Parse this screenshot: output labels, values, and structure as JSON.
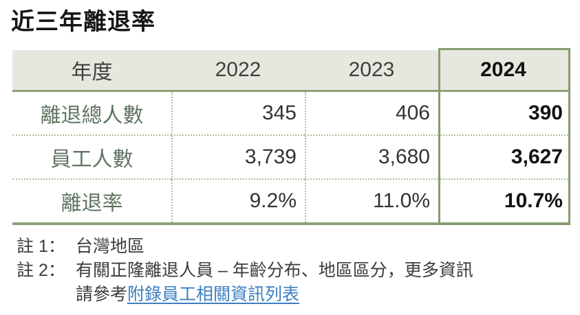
{
  "title": "近三年離退率",
  "table": {
    "header": {
      "label": "年度",
      "years": [
        "2022",
        "2023",
        "2024"
      ]
    },
    "rows": [
      {
        "label": "離退總人數",
        "values": [
          "345",
          "406",
          "390"
        ]
      },
      {
        "label": "員工人數",
        "values": [
          "3,739",
          "3,680",
          "3,627"
        ]
      },
      {
        "label": "離退率",
        "values": [
          "9.2%",
          "11.0%",
          "10.7%"
        ]
      }
    ],
    "highlighted_year": "2024"
  },
  "notes": {
    "note1": {
      "label": "註 1：",
      "text": "台灣地區"
    },
    "note2": {
      "label": "註 2：",
      "line1": "有關正隆離退人員 – 年齡分布、地區區分，更多資訊",
      "line2_prefix": "請參考",
      "link_text": "附錄員工相關資訊列表"
    }
  },
  "colors": {
    "accent_green": "#8ba277",
    "highlight_border_green": "#849c70",
    "header_bg": "#e6e8df",
    "row_label_green": "#5f7360",
    "dotted_green": "#adbf9b",
    "link_blue": "#3b7ec0"
  }
}
